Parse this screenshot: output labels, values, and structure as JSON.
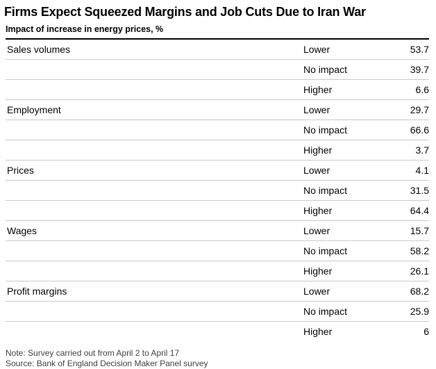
{
  "colors": {
    "background": "#ffffff",
    "text": "#000000",
    "header_rule": "#000000",
    "row_separator": "#c9c9c9",
    "footer_text": "#3f3f3f"
  },
  "header": {
    "title": "Firms Expect Squeezed Margins and Job Cuts Due to Iran War",
    "subtitle": "Impact of increase in energy prices, %"
  },
  "chart_data": {
    "type": "table",
    "title": "Firms Expect Squeezed Margins and Job Cuts Due to Iran War",
    "subtitle": "Impact of increase in energy prices, %",
    "unit": "%",
    "categories": [
      "Sales volumes",
      "Employment",
      "Prices",
      "Wages",
      "Profit margins"
    ],
    "impact_levels": [
      "Lower",
      "No impact",
      "Higher"
    ],
    "groups": [
      {
        "category": "Sales volumes",
        "rows": [
          {
            "impact": "Lower",
            "value": 53.7
          },
          {
            "impact": "No impact",
            "value": 39.7
          },
          {
            "impact": "Higher",
            "value": 6.6
          }
        ]
      },
      {
        "category": "Employment",
        "rows": [
          {
            "impact": "Lower",
            "value": 29.7
          },
          {
            "impact": "No impact",
            "value": 66.6
          },
          {
            "impact": "Higher",
            "value": 3.7
          }
        ]
      },
      {
        "category": "Prices",
        "rows": [
          {
            "impact": "Lower",
            "value": 4.1
          },
          {
            "impact": "No impact",
            "value": 31.5
          },
          {
            "impact": "Higher",
            "value": 64.4
          }
        ]
      },
      {
        "category": "Wages",
        "rows": [
          {
            "impact": "Lower",
            "value": 15.7
          },
          {
            "impact": "No impact",
            "value": 58.2
          },
          {
            "impact": "Higher",
            "value": 26.1
          }
        ]
      },
      {
        "category": "Profit margins",
        "rows": [
          {
            "impact": "Lower",
            "value": 68.2
          },
          {
            "impact": "No impact",
            "value": 25.9
          },
          {
            "impact": "Higher",
            "value": 6
          }
        ]
      }
    ]
  },
  "footer": {
    "note": "Note: Survey carried out from April 2 to April 17",
    "source": "Source: Bank of England Decision Maker Panel survey"
  }
}
